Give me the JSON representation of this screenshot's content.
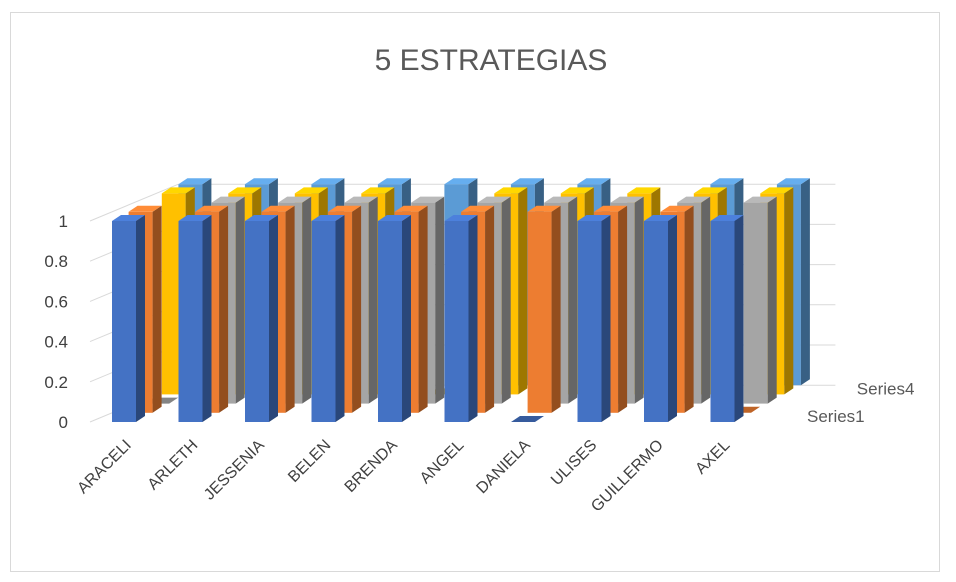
{
  "chart_data": {
    "type": "bar",
    "subtype": "3d-column",
    "title": "5 ESTRATEGIAS",
    "categories": [
      "ARACELI",
      "ARLETH",
      "JESSENIA",
      "BELEN",
      "BRENDA",
      "ANGEL",
      "DANIELA",
      "ULISES",
      "GUILLERMO",
      "AXEL"
    ],
    "series": [
      {
        "name": "Series1",
        "color": "#4472C4",
        "values": [
          1,
          1,
          1,
          1,
          1,
          1,
          0,
          1,
          1,
          1
        ]
      },
      {
        "name": "",
        "color": "#ED7D31",
        "values": [
          1,
          1,
          1,
          1,
          1,
          1,
          1,
          1,
          1,
          0
        ]
      },
      {
        "name": "",
        "color": "#A5A5A5",
        "values": [
          0,
          1,
          1,
          1,
          1,
          1,
          1,
          1,
          1,
          1
        ]
      },
      {
        "name": "Series4",
        "color": "#FFC000",
        "values": [
          1,
          1,
          1,
          1,
          0,
          1,
          1,
          1,
          1,
          1
        ]
      },
      {
        "name": "",
        "color": "#5B9BD5",
        "values": [
          1,
          1,
          1,
          1,
          1,
          1,
          1,
          0,
          1,
          1
        ]
      }
    ],
    "y_ticks": [
      "0",
      "0.2",
      "0.4",
      "0.6",
      "0.8",
      "1"
    ],
    "ylim": [
      0,
      1
    ],
    "grid": true
  }
}
